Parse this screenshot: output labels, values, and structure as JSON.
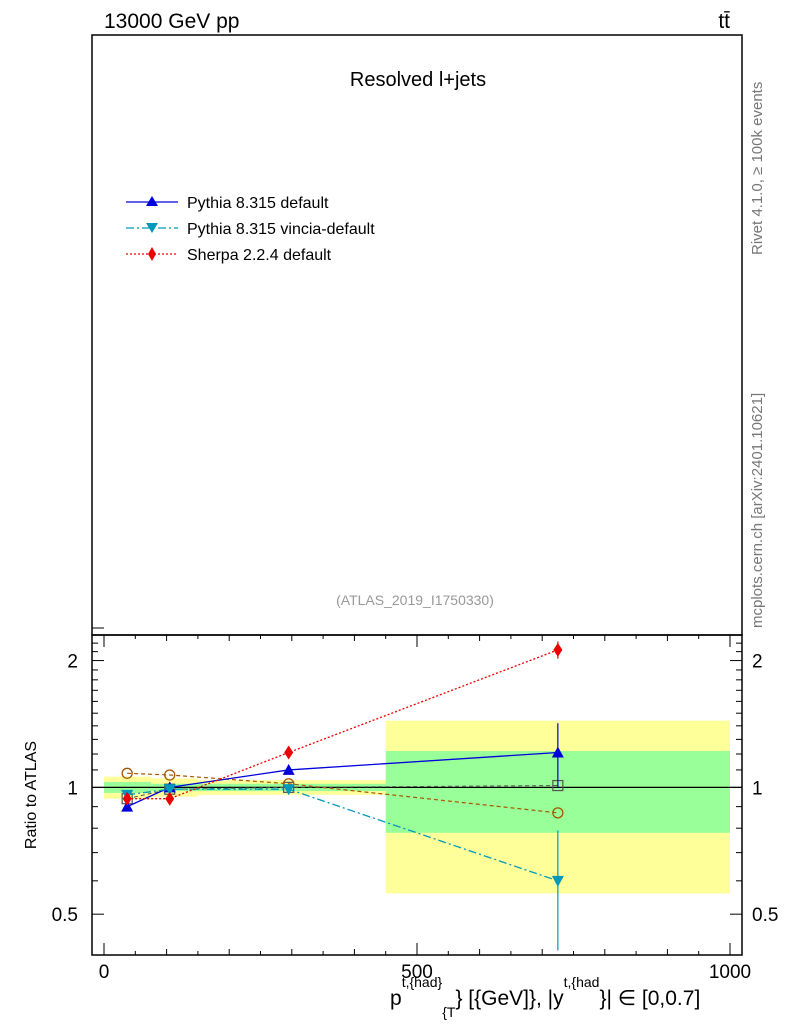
{
  "header": {
    "energy": "13000 GeV pp",
    "process": "tt̄"
  },
  "side_labels": {
    "rivet": "Rivet 4.1.0, ≥ 100k events",
    "mcplots": "mcplots.cern.ch [arXiv:2401.10621]"
  },
  "chart_data": {
    "type": "line",
    "title": "Resolved l+jets",
    "analysis_id": "(ATLAS_2019_I1750330)",
    "xlabel_main": "p",
    "xlabel_sup1": "t,{had",
    "xlabel_sub1": "{T",
    "xlabel_mid": "} [{GeV]}, |y",
    "xlabel_sup2": "t,{had",
    "xlabel_tail": "}| ∈ [0,0.7]",
    "ylabel": "Ratio to ATLAS",
    "xlim": [
      0,
      1000
    ],
    "ylim": [
      0.4,
      2.3
    ],
    "y_scale": "log",
    "x_ticks": [
      "0",
      "500",
      "1000"
    ],
    "x_tick_values": [
      0,
      500,
      1000
    ],
    "y_ticks": [
      "0.5",
      "1",
      "2"
    ],
    "y_tick_values": [
      0.5,
      1,
      2
    ],
    "legend_position": "top-left",
    "bins": [
      {
        "xlow": 0,
        "xhigh": 75,
        "stat": 0.03,
        "total": 0.06
      },
      {
        "xlow": 75,
        "xhigh": 150,
        "stat": 0.02,
        "total": 0.05
      },
      {
        "xlow": 150,
        "xhigh": 450,
        "stat": 0.02,
        "total": 0.04
      },
      {
        "xlow": 450,
        "xhigh": 1000,
        "stat": 0.22,
        "total": 0.44
      }
    ],
    "data_points": {
      "x": [
        37,
        105,
        295,
        725
      ],
      "y": [
        0.94,
        0.99,
        1.0,
        1.01
      ]
    },
    "brown_points": {
      "x": [
        37,
        105,
        295,
        725
      ],
      "y": [
        1.08,
        1.07,
        1.02,
        0.87
      ]
    },
    "series": [
      {
        "name": "Pythia 8.315 default",
        "color": "#0000dd",
        "marker": "triangle-up",
        "dash": "solid",
        "x": [
          37,
          105,
          295,
          725
        ],
        "values": [
          0.9,
          1.0,
          1.1,
          1.21
        ],
        "errors": [
          0.01,
          0.01,
          0.01,
          0.21
        ]
      },
      {
        "name": "Pythia 8.315 vincia-default",
        "color": "#0099bb",
        "marker": "triangle-down",
        "dash": "dashdot",
        "x": [
          37,
          105,
          295,
          725
        ],
        "values": [
          0.96,
          0.99,
          0.99,
          0.6
        ],
        "errors": [
          0.01,
          0.01,
          0.01,
          0.19
        ]
      },
      {
        "name": "Sherpa 2.2.4 default",
        "color": "#ee0000",
        "marker": "diamond",
        "dash": "dotted",
        "x": [
          37,
          105,
          295,
          725
        ],
        "values": [
          0.94,
          0.94,
          1.21,
          2.12
        ],
        "errors": [
          0.01,
          0.01,
          0.01,
          0.1
        ]
      }
    ]
  }
}
